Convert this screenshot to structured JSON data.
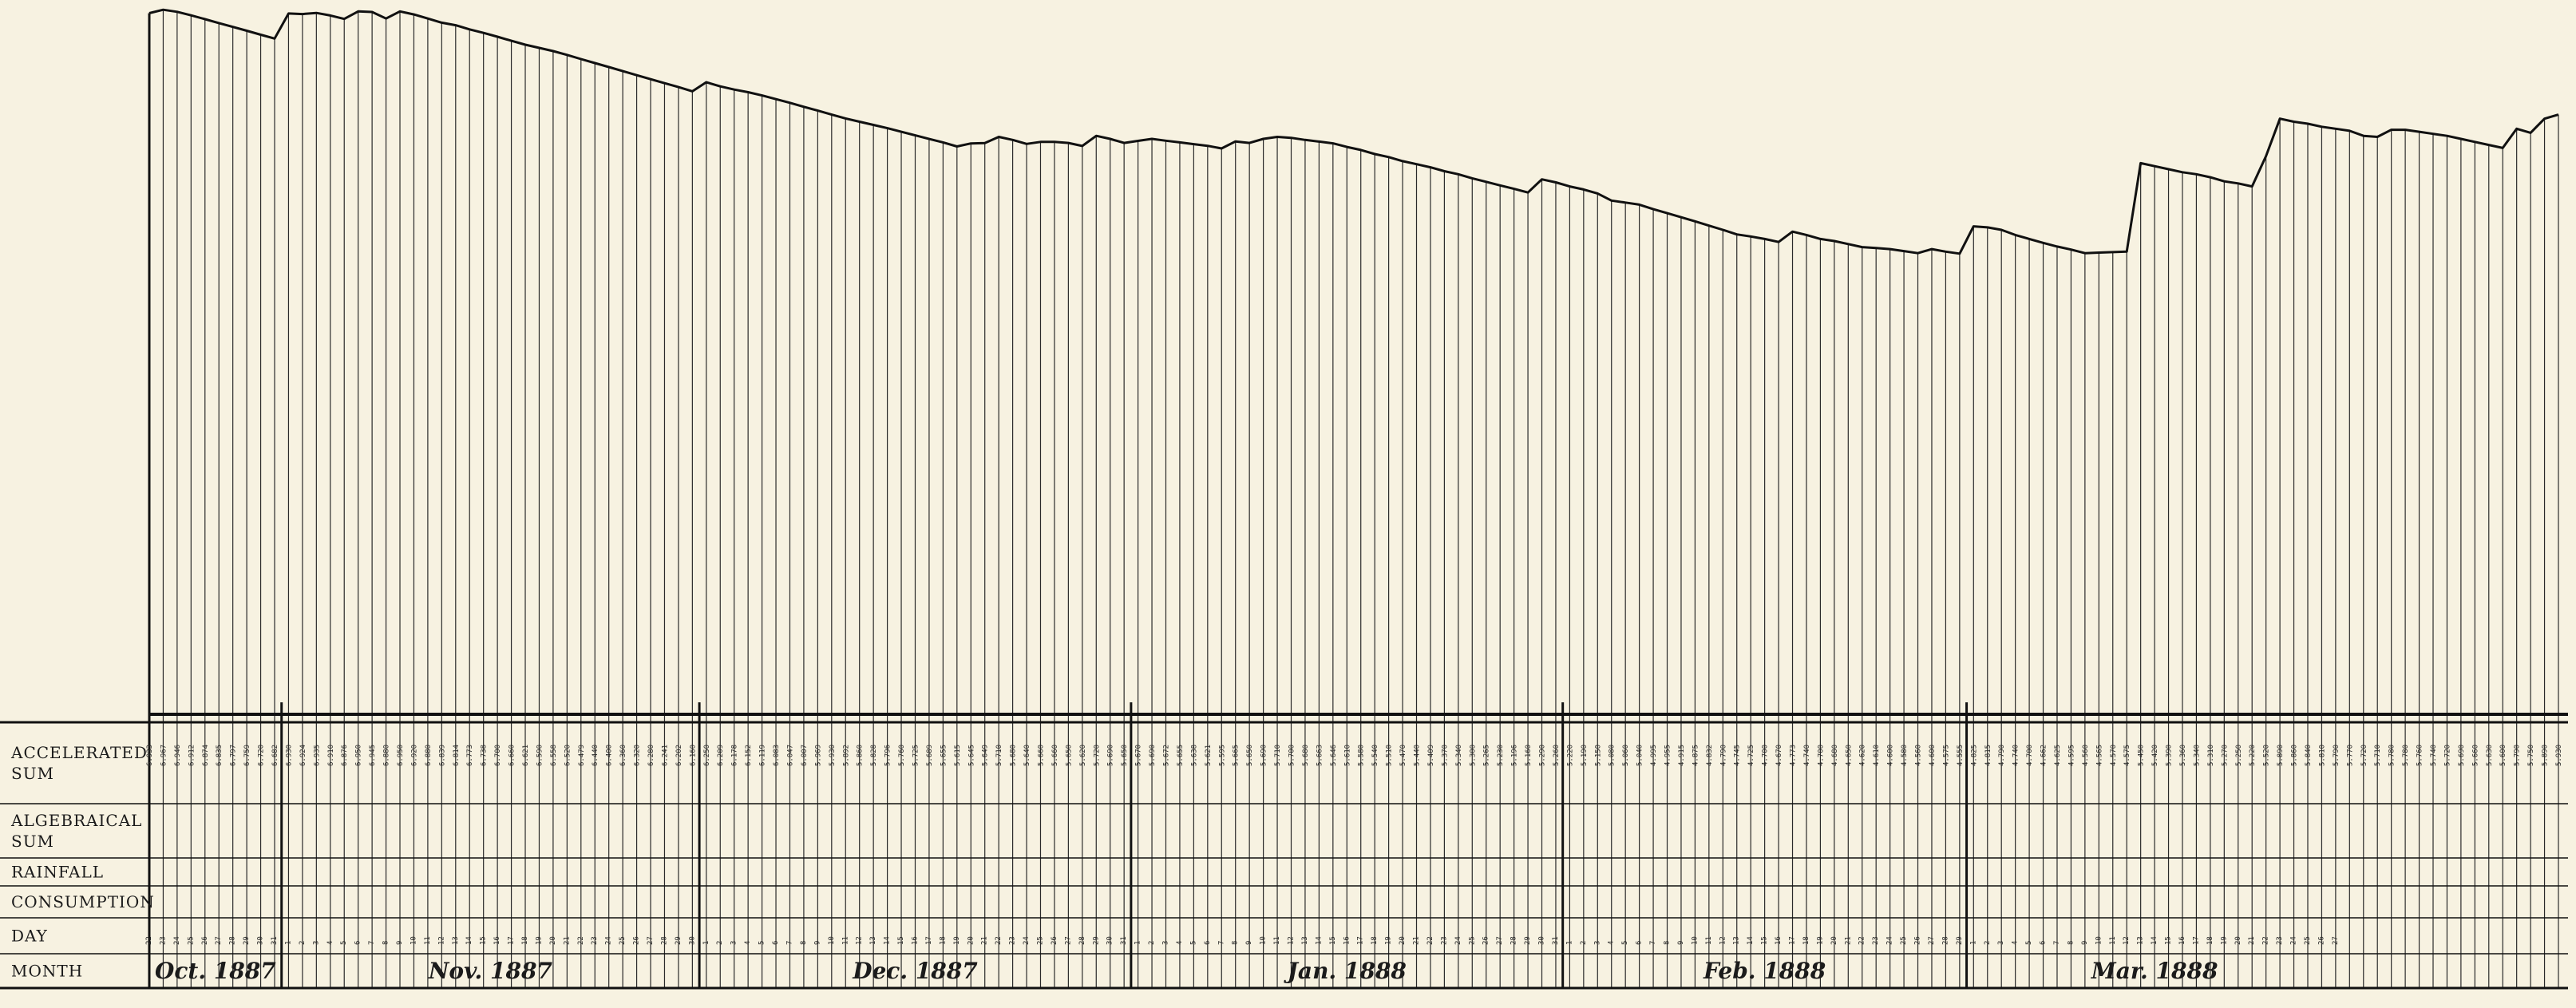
{
  "chart_data": {
    "type": "area",
    "title": "",
    "xlabel": "",
    "ylabel": "",
    "row_labels": [
      [
        "ACCELERATED",
        "SUM"
      ],
      [
        "ALGEBRAICAL",
        "SUM"
      ],
      [
        "RAINFALL"
      ],
      [
        "CONSUMPTION"
      ],
      [
        "DAY"
      ],
      [
        "MONTH"
      ]
    ],
    "months": [
      {
        "label": "Oct. 1887",
        "start_day": 22,
        "days": 10
      },
      {
        "label": "Nov. 1887",
        "start_day": 1,
        "days": 30
      },
      {
        "label": "Dec. 1887",
        "start_day": 1,
        "days": 31
      },
      {
        "label": "Jan. 1888",
        "start_day": 1,
        "days": 31
      },
      {
        "label": "Feb. 1888",
        "start_day": 1,
        "days": 29
      },
      {
        "label": "Mar. 1888",
        "start_day": 1,
        "days": 27
      }
    ],
    "accelerated_sum": [
      6.933,
      6.967,
      6.946,
      6.912,
      6.874,
      6.835,
      6.797,
      6.759,
      6.72,
      6.682,
      6.93,
      6.924,
      6.935,
      6.91,
      6.876,
      6.95,
      6.945,
      6.88,
      6.95,
      6.92,
      6.88,
      6.839,
      6.814,
      6.773,
      6.738,
      6.7,
      6.66,
      6.621,
      6.59,
      6.558,
      6.52,
      6.479,
      6.44,
      6.4,
      6.36,
      6.32,
      6.28,
      6.241,
      6.202,
      6.16,
      6.25,
      6.209,
      6.178,
      6.152,
      6.119,
      6.083,
      6.047,
      6.007,
      5.969,
      5.93,
      5.892,
      5.86,
      5.828,
      5.796,
      5.76,
      5.725,
      5.689,
      5.655,
      5.615,
      5.645,
      5.649,
      5.71,
      5.68,
      5.64,
      5.66,
      5.66,
      5.65,
      5.62,
      5.72,
      5.69,
      5.65,
      5.67,
      5.69,
      5.672,
      5.655,
      5.638,
      5.621,
      5.595,
      5.665,
      5.65,
      5.69,
      5.71,
      5.7,
      5.68,
      5.663,
      5.646,
      5.61,
      5.58,
      5.54,
      5.51,
      5.47,
      5.44,
      5.409,
      5.37,
      5.34,
      5.3,
      5.265,
      5.23,
      5.196,
      5.16,
      5.29,
      5.26,
      5.22,
      5.19,
      5.15,
      5.08,
      5.06,
      5.04,
      4.995,
      4.955,
      4.915,
      4.875,
      4.832,
      4.79,
      4.745,
      4.725,
      4.7,
      4.67,
      4.773,
      4.74,
      4.7,
      4.68,
      4.65,
      4.62,
      4.61,
      4.6,
      4.58,
      4.56,
      4.6,
      4.575,
      4.555,
      4.825,
      4.815,
      4.79,
      4.74,
      4.7,
      4.662,
      4.625,
      4.595,
      4.56,
      4.565,
      4.57,
      4.575,
      5.45,
      5.42,
      5.39,
      5.36,
      5.34,
      5.31,
      5.27,
      5.25,
      5.22,
      5.52,
      5.89,
      5.86,
      5.84,
      5.81,
      5.79,
      5.77,
      5.72,
      5.71,
      5.78,
      5.78,
      5.76,
      5.74,
      5.72,
      5.69,
      5.66,
      5.63,
      5.6,
      5.79,
      5.75,
      5.89,
      5.93
    ],
    "ylim": [
      0,
      7.0
    ],
    "grid": false,
    "legend": "none"
  }
}
